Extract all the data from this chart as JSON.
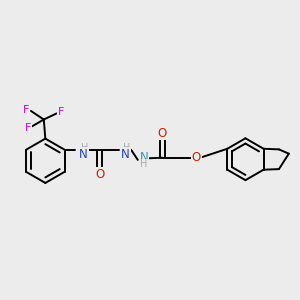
{
  "background_color": "#ececec",
  "figsize": [
    3.0,
    3.0
  ],
  "dpi": 100,
  "colors": {
    "F": "#cc00cc",
    "N": "#3399aa",
    "N_dark": "#2244bb",
    "O": "#cc2200",
    "C": "#000000",
    "H": "#aaaaaa",
    "bond": "#000000"
  },
  "lw": 1.4,
  "fs": 7.5
}
